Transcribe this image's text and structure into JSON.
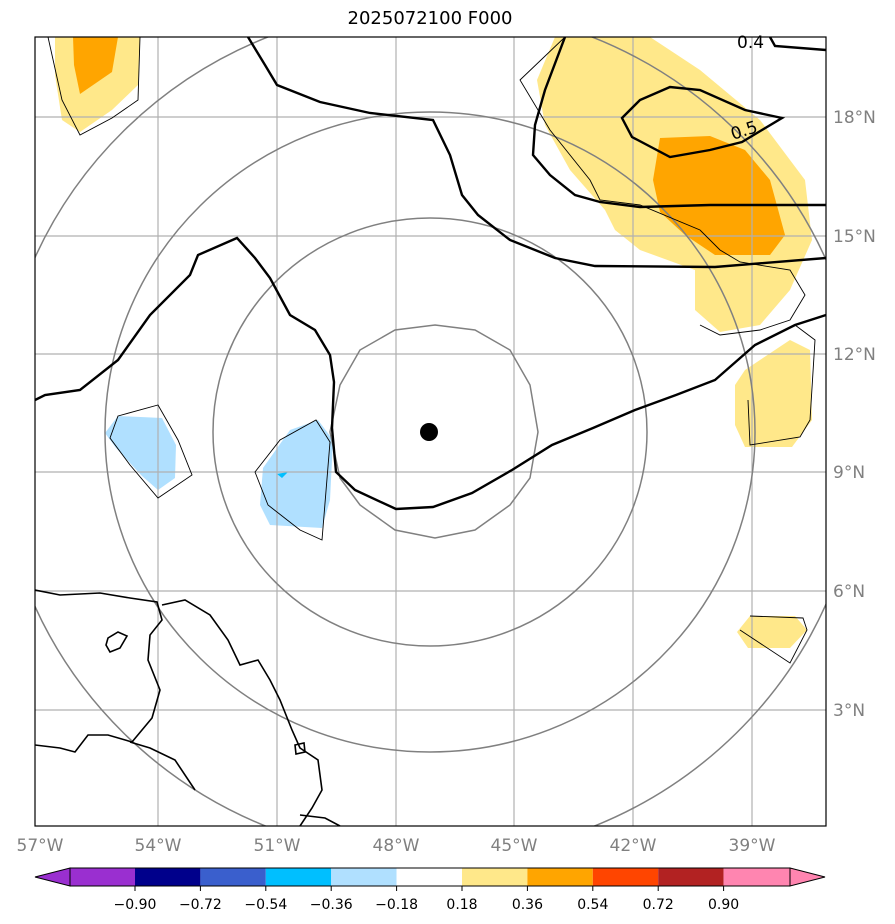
{
  "title": "2025072100 F000",
  "map": {
    "lon_labels": [
      "57°W",
      "54°W",
      "51°W",
      "48°W",
      "45°W",
      "42°W",
      "39°W"
    ],
    "lat_labels": [
      "18°N",
      "15°N",
      "12°N",
      "9°N",
      "6°N",
      "3°N"
    ],
    "contour_labels": [
      "0.4",
      "0.5"
    ],
    "center_marker": {
      "lon": -47.2,
      "lat": 10.0
    }
  },
  "colorbar": {
    "tick_labels": [
      "−0.90",
      "−0.72",
      "−0.54",
      "−0.36",
      "−0.18",
      "0.18",
      "0.36",
      "0.54",
      "0.72",
      "0.90"
    ],
    "colors": [
      "#9a2fd0",
      "#00008b",
      "#3a5fcd",
      "#00bfff",
      "#b0e0ff",
      "#ffffff",
      "#ffe88a",
      "#ffa500",
      "#ff4500",
      "#b22222",
      "#ff85b0"
    ]
  }
}
